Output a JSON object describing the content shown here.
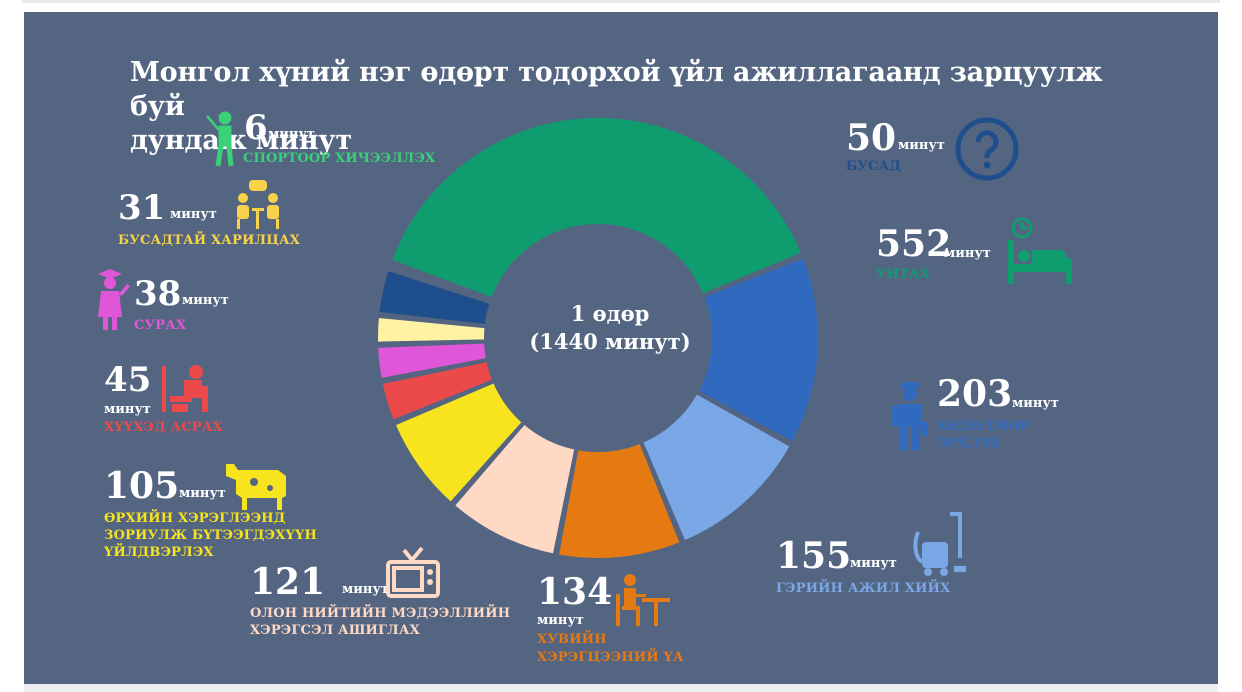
{
  "title_line1": "Монгол хүний нэг өдөрт тодорхой үйл ажиллагаанд зарцуулж буй",
  "title_line2": "дундаж минут",
  "center_line1": "1 өдөр",
  "center_line2": "(1440 минут)",
  "unit_word": "минут",
  "activities": [
    {
      "id": "sleep",
      "value": "552",
      "label": "УНТАХ",
      "color": "#0f9d6f",
      "icon": "bed-icon"
    },
    {
      "id": "work",
      "value": "203",
      "label": "ХӨДӨЛМӨР ЭРХЛЭХ",
      "color": "#2f6abf",
      "icon": "worker-icon"
    },
    {
      "id": "housework",
      "value": "155",
      "label": "ГЭРИЙН АЖИЛ ХИЙХ",
      "color": "#7aa7e6",
      "icon": "vacuum-icon"
    },
    {
      "id": "personal",
      "value": "134",
      "label_line1": "ХУВИЙН",
      "label_line2": "ХЭРЭГЦЭЭНИЙ ҮА",
      "color": "#e67a12",
      "icon": "eating-person-icon"
    },
    {
      "id": "media",
      "value": "121",
      "label_line1": "ОЛОН НИЙТИЙН МЭДЭЭЛЛИЙН",
      "label_line2": "ХЭРЭГСЭЛ АШИГЛАХ",
      "color": "#ffd9c4",
      "icon": "tv-icon"
    },
    {
      "id": "household_production",
      "value": "105",
      "label_line1": "ӨРХИЙН ХЭРЭГЛЭЭНД",
      "label_line2": "ЗОРИУЛЖ БҮТЭЭГДЭХҮҮН",
      "label_line3": "ҮЙЛДВЭРЛЭХ",
      "color": "#f7e31e",
      "icon": "cow-icon"
    },
    {
      "id": "childcare",
      "value": "45",
      "label": "ХҮҮХЭД АСРАХ",
      "color": "#ec4a4a",
      "icon": "childcare-icon"
    },
    {
      "id": "study",
      "value": "38",
      "label": "СУРАХ",
      "color": "#e056d8",
      "icon": "graduate-icon"
    },
    {
      "id": "socializing",
      "value": "31",
      "label": "БУСАДТАЙ ХАРИЛЦАХ",
      "color": "#fff3a3",
      "icon": "chat-people-icon"
    },
    {
      "id": "other",
      "value": "50",
      "label": "БУСАД",
      "color": "#1f4e8c",
      "icon": "question-icon"
    },
    {
      "id": "sport",
      "value": "6",
      "label": "СПОРТООР ХИЧЭЭЛЛЭХ",
      "color": "#3bd07a",
      "icon": "golfer-icon"
    }
  ],
  "chart_data": {
    "type": "pie",
    "title": "Монгол хүний нэг өдөрт тодорхой үйл ажиллагаанд зарцуулж буй дундаж минут",
    "center_label": "1 өдөр (1440 минут)",
    "unit": "минут",
    "categories": [
      "УНТАХ",
      "ХӨДӨЛМӨР ЭРХЛЭХ",
      "ГЭРИЙН АЖИЛ ХИЙХ",
      "ХУВИЙН ХЭРЭГЦЭЭНИЙ ҮА",
      "ОЛОН НИЙТИЙН МЭДЭЭЛЛИЙН ХЭРЭГСЭЛ АШИГЛАХ",
      "ӨРХИЙН ХЭРЭГЛЭЭНД ЗОРИУЛЖ БҮТЭЭГДЭХҮҮН ҮЙЛДВЭРЛЭХ",
      "ХҮҮХЭД АСРАХ",
      "СУРАХ",
      "БУСАДТАЙ ХАРИЛЦАХ",
      "БУСАД",
      "СПОРТООР ХИЧЭЭЛЛЭХ"
    ],
    "values": [
      552,
      203,
      155,
      134,
      121,
      105,
      45,
      38,
      31,
      50,
      6
    ],
    "colors": [
      "#0f9d6f",
      "#2f6abf",
      "#7aa7e6",
      "#e67a12",
      "#ffd9c4",
      "#f7e31e",
      "#ec4a4a",
      "#e056d8",
      "#fff3a3",
      "#1f4e8c",
      "#3bd07a"
    ],
    "total": 1440,
    "donut": true
  }
}
